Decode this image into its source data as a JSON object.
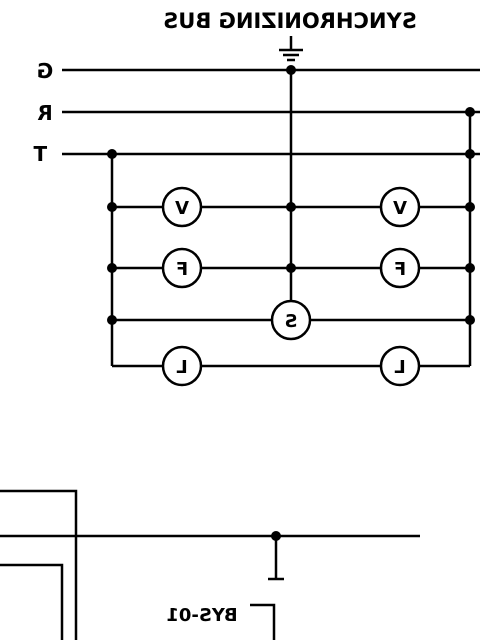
{
  "title": "SYNCHRONIZING BUS",
  "bus_labels": {
    "g": "G",
    "r": "R",
    "t": "T"
  },
  "meters": {
    "v_left": "V",
    "v_right": "V",
    "f_left": "F",
    "f_right": "F",
    "s_center": "S",
    "l_left": "L",
    "l_right": "L"
  },
  "device_label": "BYS-01"
}
